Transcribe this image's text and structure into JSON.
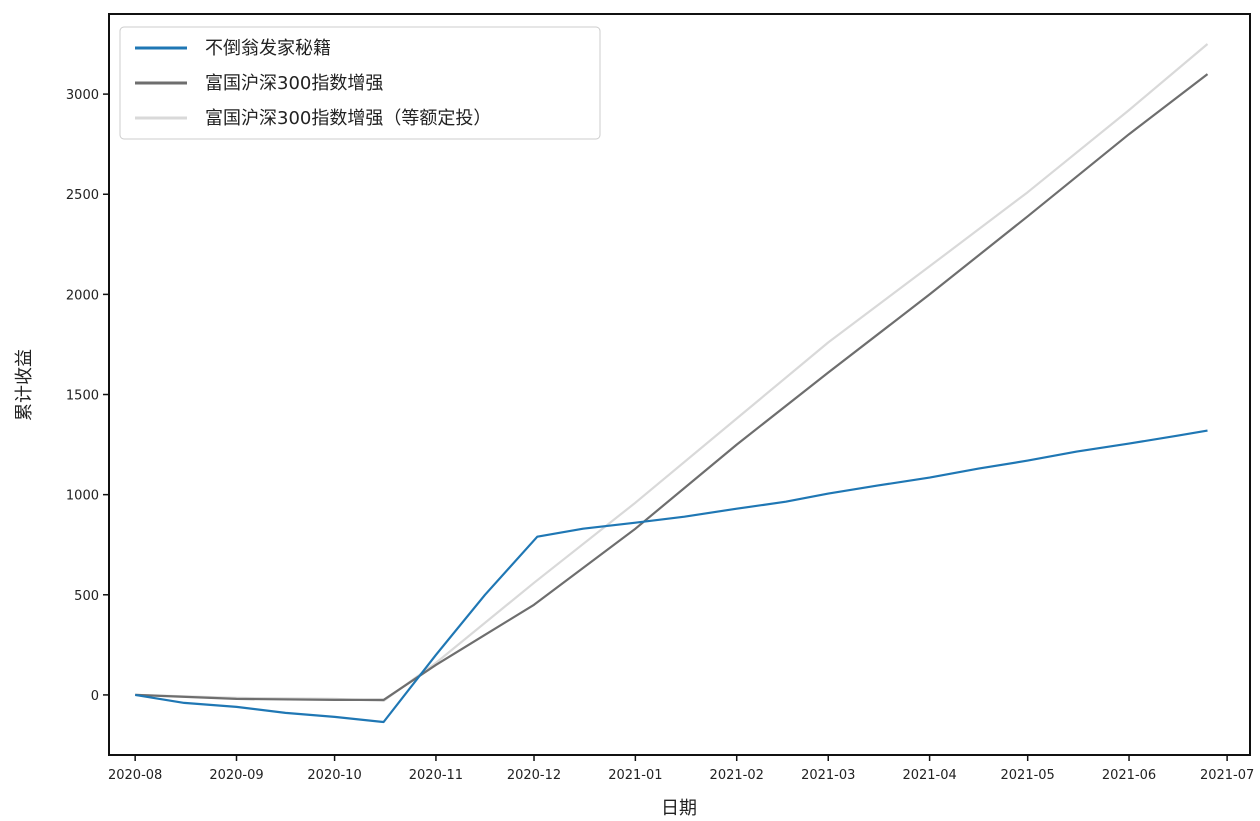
{
  "chart_data": {
    "type": "line",
    "xlabel": "日期",
    "ylabel": "累计收益",
    "xlim": [
      "2020-07-24",
      "2021-07-08"
    ],
    "ylim": [
      -300,
      3400
    ],
    "x_ticks": [
      "2020-08-01",
      "2020-09-01",
      "2020-10-01",
      "2020-11-01",
      "2020-12-01",
      "2021-01-01",
      "2021-02-01",
      "2021-03-01",
      "2021-04-01",
      "2021-05-01",
      "2021-06-01",
      "2021-07-01"
    ],
    "x_tick_labels": [
      "2020-08",
      "2020-09",
      "2020-10",
      "2020-11",
      "2020-12",
      "2021-01",
      "2021-02",
      "2021-03",
      "2021-04",
      "2021-05",
      "2021-06",
      "2021-07"
    ],
    "y_ticks": [
      0,
      500,
      1000,
      1500,
      2000,
      2500,
      3000
    ],
    "y_tick_labels": [
      "0",
      "500",
      "1000",
      "1500",
      "2000",
      "2500",
      "3000"
    ],
    "grid": false,
    "legend_position": "top-left",
    "series": [
      {
        "name": "不倒翁发家秘籍",
        "color": "#1f77b4",
        "x": [
          "2020-08-01",
          "2020-08-16",
          "2020-09-01",
          "2020-09-16",
          "2020-10-01",
          "2020-10-16",
          "2020-11-01",
          "2020-11-16",
          "2020-12-02",
          "2020-12-16",
          "2021-01-01",
          "2021-01-16",
          "2021-02-01",
          "2021-02-16",
          "2021-03-01",
          "2021-03-16",
          "2021-04-01",
          "2021-04-16",
          "2021-05-01",
          "2021-05-16",
          "2021-06-01",
          "2021-06-16",
          "2021-06-25"
        ],
        "y": [
          0,
          -40,
          -60,
          -90,
          -110,
          -135,
          200,
          500,
          790,
          830,
          860,
          890,
          930,
          965,
          1005,
          1045,
          1085,
          1130,
          1170,
          1215,
          1255,
          1295,
          1320
        ]
      },
      {
        "name": "富国沪深300指数增强",
        "color": "#6e6e6e",
        "x": [
          "2020-08-01",
          "2020-09-01",
          "2020-10-01",
          "2020-10-16",
          "2020-11-01",
          "2020-12-01",
          "2021-01-01",
          "2021-02-01",
          "2021-03-01",
          "2021-04-01",
          "2021-05-01",
          "2021-06-01",
          "2021-06-25"
        ],
        "y": [
          0,
          -20,
          -25,
          -25,
          150,
          450,
          830,
          1250,
          1610,
          2000,
          2390,
          2800,
          3100
        ]
      },
      {
        "name": "富国沪深300指数增强（等额定投）",
        "color": "#d9d9d9",
        "x": [
          "2020-08-01",
          "2020-09-01",
          "2020-10-01",
          "2020-10-16",
          "2020-11-01",
          "2020-12-01",
          "2021-01-01",
          "2021-02-01",
          "2021-03-01",
          "2021-04-01",
          "2021-05-01",
          "2021-06-01",
          "2021-06-25"
        ],
        "y": [
          0,
          -15,
          -20,
          -30,
          160,
          560,
          960,
          1380,
          1760,
          2140,
          2510,
          2920,
          3250
        ]
      }
    ]
  }
}
